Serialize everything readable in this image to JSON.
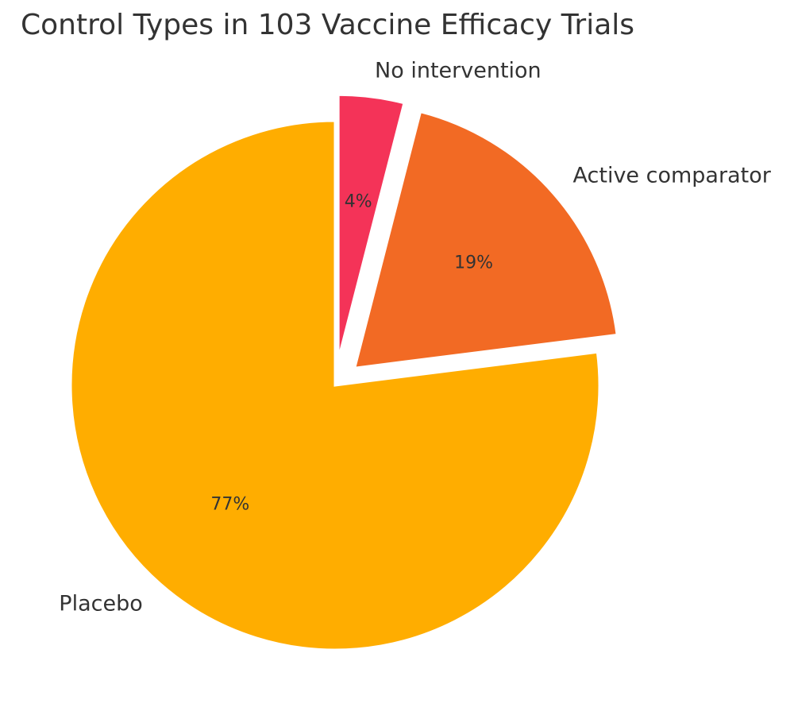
{
  "chart_data": {
    "type": "pie",
    "title": "Control Types in 103 Vaccine Efficacy Trials",
    "categories": [
      "No intervention",
      "Active comparator",
      "Placebo"
    ],
    "values": [
      4,
      19,
      77
    ],
    "value_labels": [
      "4%",
      "19%",
      "77%"
    ],
    "colors": [
      "#F43358",
      "#F26A24",
      "#FFAD00"
    ],
    "start_angle_deg": 90,
    "direction": "clockwise",
    "exploded": [
      "No intervention",
      "Active comparator"
    ],
    "legend": "none"
  }
}
